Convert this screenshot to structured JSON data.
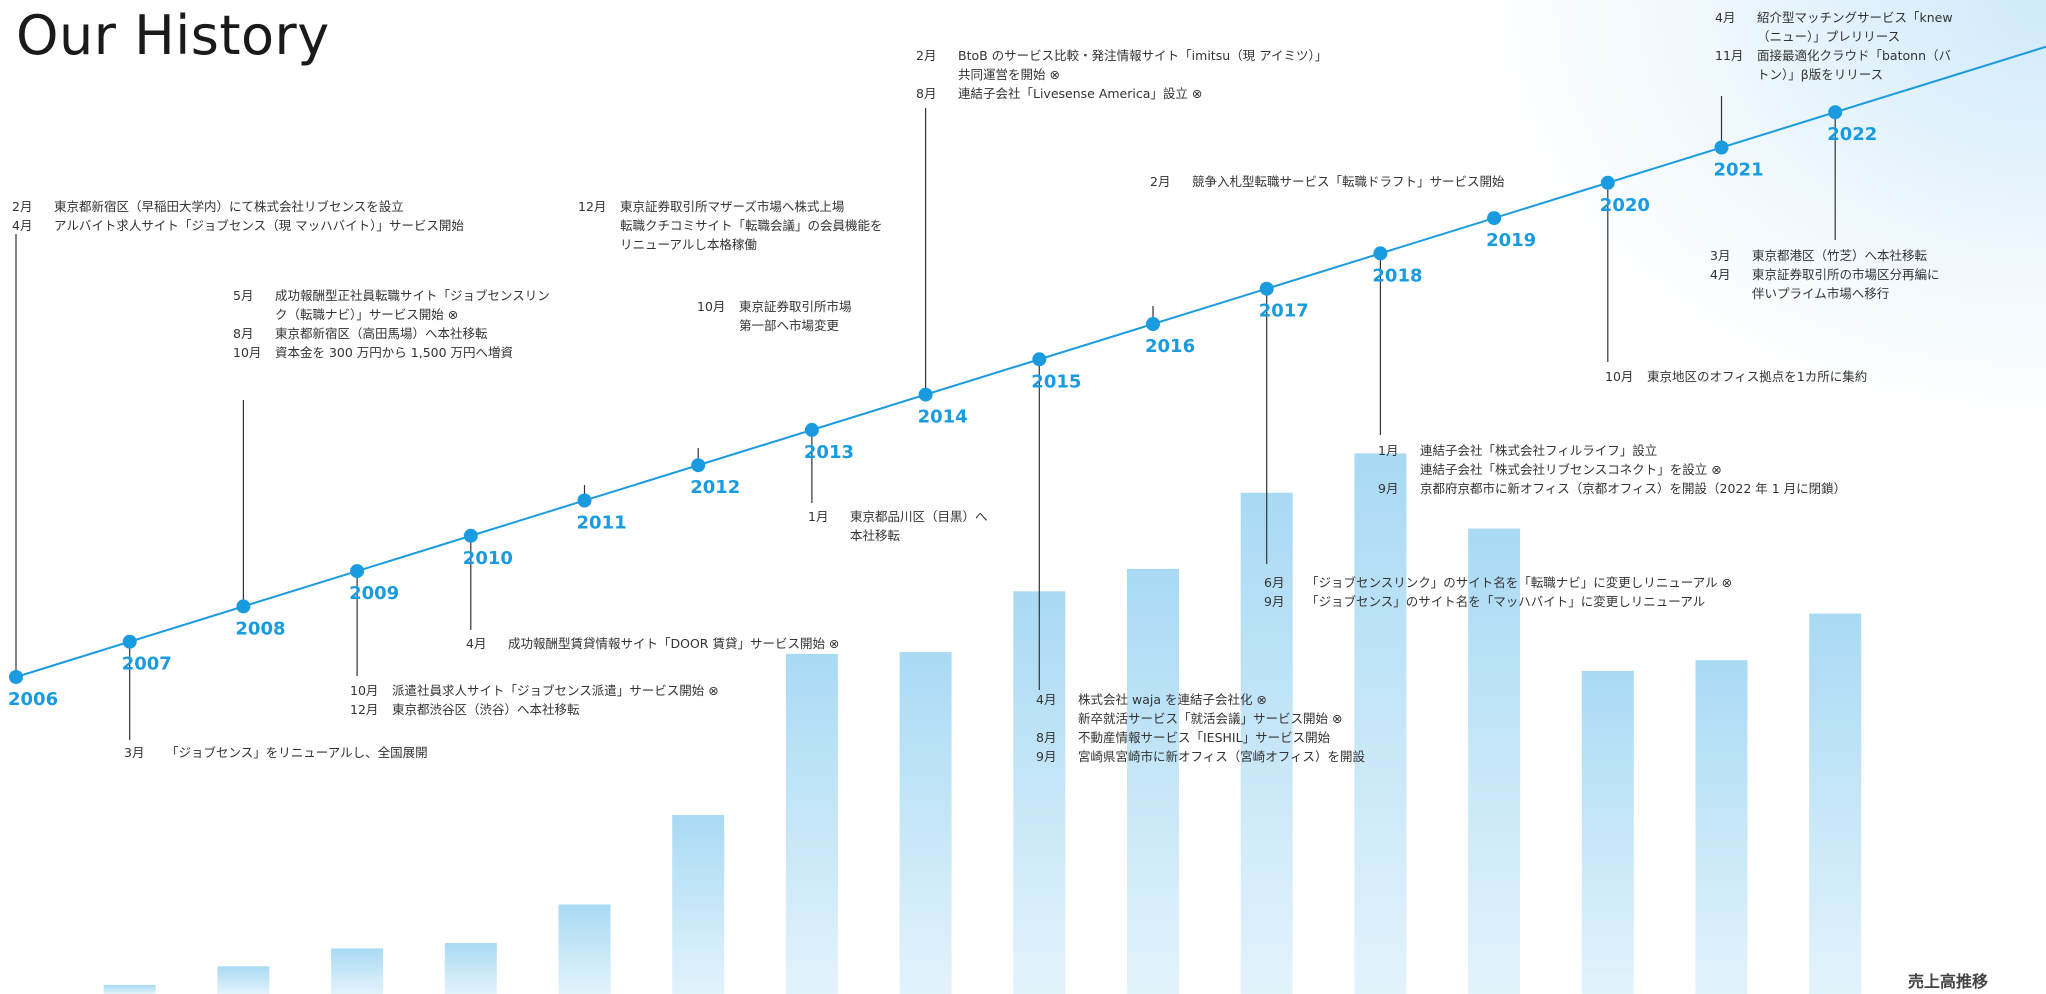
{
  "title": "Our History",
  "sales_label": "売上高推移",
  "colors": {
    "accent": "#1a9be0",
    "bar_top": "#a9daf4",
    "bar_bottom": "#e3f3fc",
    "stem": "#333333"
  },
  "chart_data": [
    {
      "type": "line",
      "x": [
        "2006",
        "2007",
        "2008",
        "2009",
        "2010",
        "2011",
        "2012",
        "2013",
        "2014",
        "2015",
        "2016",
        "2017",
        "2018",
        "2019",
        "2020",
        "2021",
        "2022"
      ],
      "title": "",
      "xlabel": "",
      "ylabel": ""
    },
    {
      "type": "bar",
      "title": "売上高推移",
      "categories": [
        "2007",
        "2008",
        "2009",
        "2010",
        "2011",
        "2012",
        "2013",
        "2014",
        "2015",
        "2016",
        "2017",
        "2018",
        "2019",
        "2020",
        "2021",
        "2022"
      ],
      "values": [
        1.0,
        3.1,
        5.1,
        5.7,
        10.0,
        20.0,
        38.0,
        38.2,
        45.0,
        47.5,
        56.0,
        60.4,
        52.0,
        36.1,
        37.3,
        42.5
      ],
      "ylim": [
        0,
        100
      ],
      "grid": false
    }
  ],
  "events": [
    {
      "items": [
        {
          "month": "2月",
          "text": "東京都新宿区（早稲田大学内）にて株式会社リブセンスを設立"
        },
        {
          "month": "4月",
          "text": "アルバイト求人サイト「ジョブセンス（現 マッハバイト）」サービス開始"
        }
      ]
    },
    {
      "items": [
        {
          "month": "3月",
          "text": "「ジョブセンス」をリニューアルし、全国展開"
        }
      ]
    },
    {
      "items": [
        {
          "month": "5月",
          "text": "成功報酬型正社員転職サイト「ジョブセンスリン\nク（転職ナビ）」サービス開始 ⊗"
        },
        {
          "month": "8月",
          "text": "東京都新宿区（高田馬場）へ本社移転"
        },
        {
          "month": "10月",
          "text": "資本金を 300 万円から 1,500 万円へ増資"
        }
      ]
    },
    {
      "items": [
        {
          "month": "10月",
          "text": "派遣社員求人サイト「ジョブセンス派遣」サービス開始 ⊗"
        },
        {
          "month": "12月",
          "text": "東京都渋谷区（渋谷）へ本社移転"
        }
      ]
    },
    {
      "items": [
        {
          "month": "4月",
          "text": "成功報酬型賃貸情報サイト「DOOR 賃貸」サービス開始 ⊗"
        }
      ]
    },
    {
      "items": [
        {
          "month": "12月",
          "text": "東京証券取引所マザーズ市場へ株式上場"
        },
        {
          "month": "",
          "text": "転職クチコミサイト「転職会議」の会員機能を\nリニューアルし本格稼働"
        }
      ]
    },
    {
      "items": [
        {
          "month": "10月",
          "text": "東京証券取引所市場\n第一部へ市場変更"
        }
      ]
    },
    {
      "items": [
        {
          "month": "1月",
          "text": "東京都品川区（目黒）へ\n本社移転"
        }
      ]
    },
    {
      "items": [
        {
          "month": "2月",
          "text": "BtoB のサービス比較・発注情報サイト「imitsu（現 アイミツ）」\n共同運営を開始 ⊗"
        },
        {
          "month": "8月",
          "text": "連結子会社「Livesense America」設立 ⊗"
        }
      ]
    },
    {
      "items": [
        {
          "month": "4月",
          "text": "株式会社 waja を連結子会社化 ⊗"
        },
        {
          "month": "",
          "text": "新卒就活サービス「就活会議」サービス開始 ⊗"
        },
        {
          "month": "8月",
          "text": "不動産情報サービス「IESHIL」サービス開始"
        },
        {
          "month": "9月",
          "text": "宮崎県宮崎市に新オフィス（宮崎オフィス）を開設"
        }
      ]
    },
    {
      "items": [
        {
          "month": "2月",
          "text": "競争入札型転職サービス「転職ドラフト」サービス開始"
        }
      ]
    },
    {
      "items": [
        {
          "month": "6月",
          "text": "「ジョブセンスリンク」のサイト名を「転職ナビ」に変更しリニューアル ⊗"
        },
        {
          "month": "9月",
          "text": "「ジョブセンス」のサイト名を「マッハバイト」に変更しリニューアル"
        }
      ]
    },
    {
      "items": [
        {
          "month": "1月",
          "text": "連結子会社「株式会社フィルライフ」設立"
        },
        {
          "month": "",
          "text": "連結子会社「株式会社リブセンスコネクト」を設立 ⊗"
        },
        {
          "month": "9月",
          "text": "京都府京都市に新オフィス（京都オフィス）を開設（2022 年 1 月に閉鎖）"
        }
      ]
    },
    {
      "items": [
        {
          "month": "10月",
          "text": "東京地区のオフィス拠点を1カ所に集約"
        }
      ]
    },
    {
      "items": [
        {
          "month": "4月",
          "text": "紹介型マッチングサービス「knew\n（ニュー）」プレリリース"
        },
        {
          "month": "11月",
          "text": "面接最適化クラウド「batonn（バ\nトン）」β版をリリース"
        }
      ]
    },
    {
      "items": [
        {
          "month": "3月",
          "text": "東京都港区（竹芝）へ本社移転"
        },
        {
          "month": "4月",
          "text": "東京証券取引所の市場区分再編に\n伴いプライム市場へ移行"
        }
      ]
    }
  ]
}
